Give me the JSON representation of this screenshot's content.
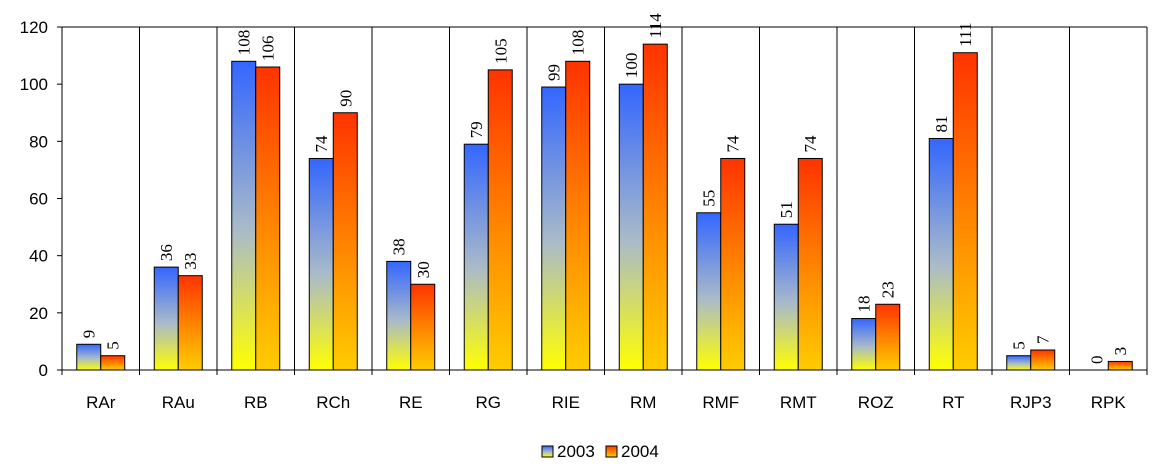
{
  "chart_data": {
    "type": "bar",
    "categories": [
      "RAr",
      "RAu",
      "RB",
      "RCh",
      "RE",
      "RG",
      "RIE",
      "RM",
      "RMF",
      "RMT",
      "ROZ",
      "RT",
      "RJP3",
      "RPK"
    ],
    "series": [
      {
        "name": "2003",
        "values": [
          9,
          36,
          108,
          74,
          38,
          79,
          99,
          100,
          55,
          51,
          18,
          81,
          5,
          0
        ]
      },
      {
        "name": "2004",
        "values": [
          5,
          33,
          106,
          90,
          30,
          105,
          108,
          114,
          74,
          74,
          23,
          111,
          7,
          3
        ]
      }
    ],
    "y_ticks": [
      "0",
      "20",
      "40",
      "60",
      "80",
      "100",
      "120"
    ],
    "ylim": [
      0,
      120
    ],
    "grid": "vertical category separators",
    "legend_position": "bottom-center",
    "colors": {
      "s2003_top": "#3366ff",
      "s2003_bottom": "#ffff00",
      "s2004_top": "#ff3300",
      "s2004_bottom": "#ffcc00"
    }
  }
}
